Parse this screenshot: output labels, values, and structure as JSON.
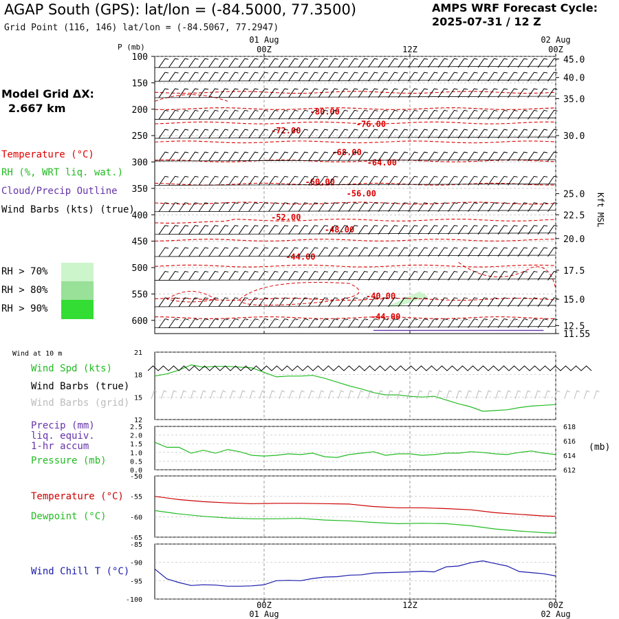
{
  "header": {
    "title": "AGAP South (GPS):  lat/lon = (-84.5000, 77.3500)",
    "subtitle": "Grid Point (116, 146) lat/lon = (-84.5067, 77.2947)",
    "cycle_line1": "AMPS WRF Forecast Cycle:",
    "cycle_line2": "2025-07-31 / 12  Z"
  },
  "left_panel": {
    "grid_label": "Model Grid ΔX:",
    "grid_value": "2.667 km",
    "legend": [
      {
        "label": "Temperature (°C)",
        "color": "#dd0000"
      },
      {
        "label": "RH (%, WRT liq. wat.)",
        "color": "#22bb22"
      },
      {
        "label": "Cloud/Precip Outline",
        "color": "#6633aa"
      },
      {
        "label": "Wind Barbs (kts) (true)",
        "color": "#000000"
      }
    ],
    "rh_legend": [
      {
        "label": "RH > 70%",
        "color": "#ccf5cc"
      },
      {
        "label": "RH > 80%",
        "color": "#99e099"
      },
      {
        "label": "RH > 90%",
        "color": "#33dd33"
      }
    ]
  },
  "top_axis": {
    "p_label": "P (mb)",
    "kft_label": "Kft MSL",
    "time_ticks": [
      {
        "t": 12,
        "line1": "01 Aug",
        "line2": "00Z"
      },
      {
        "t": 24,
        "line1": "",
        "line2": "12Z"
      },
      {
        "t": 36,
        "line1": "02 Aug",
        "line2": "00Z"
      }
    ]
  },
  "bottom_axis": {
    "time_ticks": [
      {
        "t": 12,
        "line1": "00Z",
        "line2": "01 Aug"
      },
      {
        "t": 24,
        "line1": "12Z",
        "line2": ""
      },
      {
        "t": 36,
        "line1": "00Z",
        "line2": "02 Aug"
      }
    ]
  },
  "chart_data": [
    {
      "type": "heatmap",
      "name": "cross-section",
      "x_range_hours": [
        3,
        36
      ],
      "pressure_ticks": [
        "100",
        "150",
        "200",
        "250",
        "300",
        "350",
        "400",
        "450",
        "500",
        "550",
        "600"
      ],
      "height_ticks": [
        "45.0",
        "40.0",
        "35.0",
        "30.0",
        "25.0",
        "22.5",
        "20.0",
        "17.5",
        "15.0",
        "12.5",
        "11.55"
      ],
      "height_tick_pressure": [
        105,
        140,
        180,
        250,
        360,
        400,
        445,
        505,
        560,
        610,
        625
      ],
      "temperature_contour_labels": [
        {
          "label": "-80.00",
          "t": 17.0,
          "p": 205
        },
        {
          "label": "-76.00",
          "t": 20.8,
          "p": 228
        },
        {
          "label": "-72.00",
          "t": 13.8,
          "p": 241
        },
        {
          "label": "-68.00",
          "t": 18.8,
          "p": 282
        },
        {
          "label": "-64.00",
          "t": 21.7,
          "p": 301
        },
        {
          "label": "-60.00",
          "t": 16.6,
          "p": 338
        },
        {
          "label": "-56.00",
          "t": 20.0,
          "p": 360
        },
        {
          "label": "-52.00",
          "t": 13.8,
          "p": 405
        },
        {
          "label": "-48.00",
          "t": 18.2,
          "p": 428
        },
        {
          "label": "-44.00",
          "t": 15.0,
          "p": 480
        },
        {
          "label": "-40.00",
          "t": 21.6,
          "p": 554
        },
        {
          "label": "-44.00",
          "t": 22.0,
          "p": 593
        }
      ],
      "wind_barb_levels": [
        112,
        138,
        169,
        210,
        246,
        289,
        335,
        385,
        428,
        470,
        515,
        565,
        605
      ]
    },
    {
      "type": "line",
      "name": "wind-10m",
      "title": "Wind at 10 m",
      "ylim": [
        12,
        21
      ],
      "y_ticks": [
        "21",
        "18",
        "15",
        "12"
      ],
      "x": [
        3,
        4,
        5,
        6,
        7,
        8,
        9,
        10,
        11,
        12,
        13,
        14,
        15,
        16,
        17,
        18,
        19,
        20,
        21,
        22,
        23,
        24,
        25,
        26,
        27,
        28,
        29,
        30,
        31,
        32,
        33,
        34,
        35,
        36
      ],
      "series": [
        {
          "name": "Wind Spd (kts)",
          "color": "#22bb22",
          "values": [
            17.8,
            18.1,
            18.6,
            19.3,
            19.0,
            19.1,
            19.1,
            19.0,
            18.9,
            18.3,
            17.7,
            17.8,
            17.8,
            17.9,
            17.5,
            17.0,
            16.5,
            16.1,
            15.6,
            15.3,
            15.3,
            15.1,
            15.0,
            15.1,
            14.6,
            14.1,
            13.7,
            13.1,
            13.2,
            13.3,
            13.6,
            13.8,
            13.9,
            14.0
          ]
        }
      ],
      "labels": [
        "Wind Spd (kts)",
        "Wind Barbs (true)",
        "Wind Barbs (grid)"
      ],
      "label_colors": [
        "#22bb22",
        "#000000",
        "#bbbbbb"
      ]
    },
    {
      "type": "line",
      "name": "precip-pressure",
      "ylim_left": [
        0,
        2.5
      ],
      "y_ticks_left": [
        "2.5",
        "2.0",
        "1.5",
        "1.0",
        "0.5",
        "0.0"
      ],
      "ylim_right": [
        612,
        618
      ],
      "y_ticks_right": [
        "618",
        "616",
        "614",
        "612"
      ],
      "right_unit": "(mb)",
      "x": [
        3,
        4,
        5,
        6,
        7,
        8,
        9,
        10,
        11,
        12,
        13,
        14,
        15,
        16,
        17,
        18,
        19,
        20,
        21,
        22,
        23,
        24,
        25,
        26,
        27,
        28,
        29,
        30,
        31,
        32,
        33,
        34,
        35,
        36
      ],
      "series": [
        {
          "name": "Pressure (mb)",
          "color": "#22bb22",
          "values": [
            615.8,
            615.1,
            615.1,
            614.3,
            614.7,
            614.3,
            614.8,
            614.5,
            614.0,
            613.9,
            614.0,
            614.2,
            614.1,
            614.3,
            613.8,
            613.7,
            614.1,
            614.3,
            614.5,
            614.0,
            614.2,
            614.2,
            614.0,
            614.1,
            614.3,
            614.3,
            614.5,
            614.4,
            614.2,
            614.1,
            614.4,
            614.6,
            614.3,
            614.1
          ]
        }
      ],
      "labels": [
        "Precip (mm)",
        "liq. equiv.",
        "1-hr accum",
        "Pressure (mb)"
      ],
      "label_colors": [
        "#6633aa",
        "#6633aa",
        "#6633aa",
        "#22bb22"
      ]
    },
    {
      "type": "line",
      "name": "temperature-dewpoint",
      "ylim": [
        -65,
        -50
      ],
      "y_ticks": [
        "-50",
        "-55",
        "-60",
        "-65"
      ],
      "x": [
        3,
        5,
        7,
        9,
        11,
        13,
        15,
        17,
        19,
        21,
        23,
        25,
        27,
        29,
        31,
        33,
        35,
        36
      ],
      "series": [
        {
          "name": "Temperature (°C)",
          "color": "#cc0000",
          "values": [
            -55.0,
            -55.8,
            -56.3,
            -56.6,
            -56.8,
            -56.7,
            -56.7,
            -56.8,
            -56.9,
            -57.5,
            -57.8,
            -57.8,
            -58.0,
            -58.3,
            -59.0,
            -59.4,
            -59.8,
            -59.9
          ]
        },
        {
          "name": "Dewpoint (°C)",
          "color": "#22bb22",
          "values": [
            -58.5,
            -59.3,
            -59.9,
            -60.3,
            -60.5,
            -60.5,
            -60.4,
            -60.8,
            -61.0,
            -61.4,
            -61.7,
            -61.6,
            -61.7,
            -62.2,
            -63.0,
            -63.5,
            -63.9,
            -64.0
          ]
        }
      ],
      "labels": [
        "Temperature (°C)",
        "Dewpoint (°C)"
      ],
      "label_colors": [
        "#cc0000",
        "#22bb22"
      ]
    },
    {
      "type": "line",
      "name": "wind-chill",
      "ylim": [
        -100,
        -85
      ],
      "y_ticks": [
        "-85",
        "-90",
        "-95",
        "-100"
      ],
      "x": [
        3,
        4,
        5,
        6,
        7,
        8,
        9,
        10,
        11,
        12,
        13,
        14,
        15,
        16,
        17,
        18,
        19,
        20,
        21,
        22,
        23,
        24,
        25,
        26,
        27,
        28,
        29,
        30,
        31,
        32,
        33,
        34,
        35,
        36
      ],
      "series": [
        {
          "name": "Wind Chill T (°C)",
          "color": "#1a1aaa",
          "values": [
            -91.8,
            -94.5,
            -95.5,
            -96.3,
            -96.1,
            -96.2,
            -96.5,
            -96.5,
            -96.4,
            -96.1,
            -95.0,
            -94.9,
            -95.0,
            -94.4,
            -94.0,
            -93.9,
            -93.5,
            -93.4,
            -92.9,
            -92.8,
            -92.7,
            -92.6,
            -92.4,
            -92.6,
            -91.2,
            -91.0,
            -90.1,
            -89.6,
            -90.3,
            -91.0,
            -92.5,
            -92.8,
            -93.1,
            -93.7
          ]
        }
      ],
      "labels": [
        "Wind Chill T (°C)"
      ],
      "label_colors": [
        "#1a1aaa"
      ]
    }
  ]
}
